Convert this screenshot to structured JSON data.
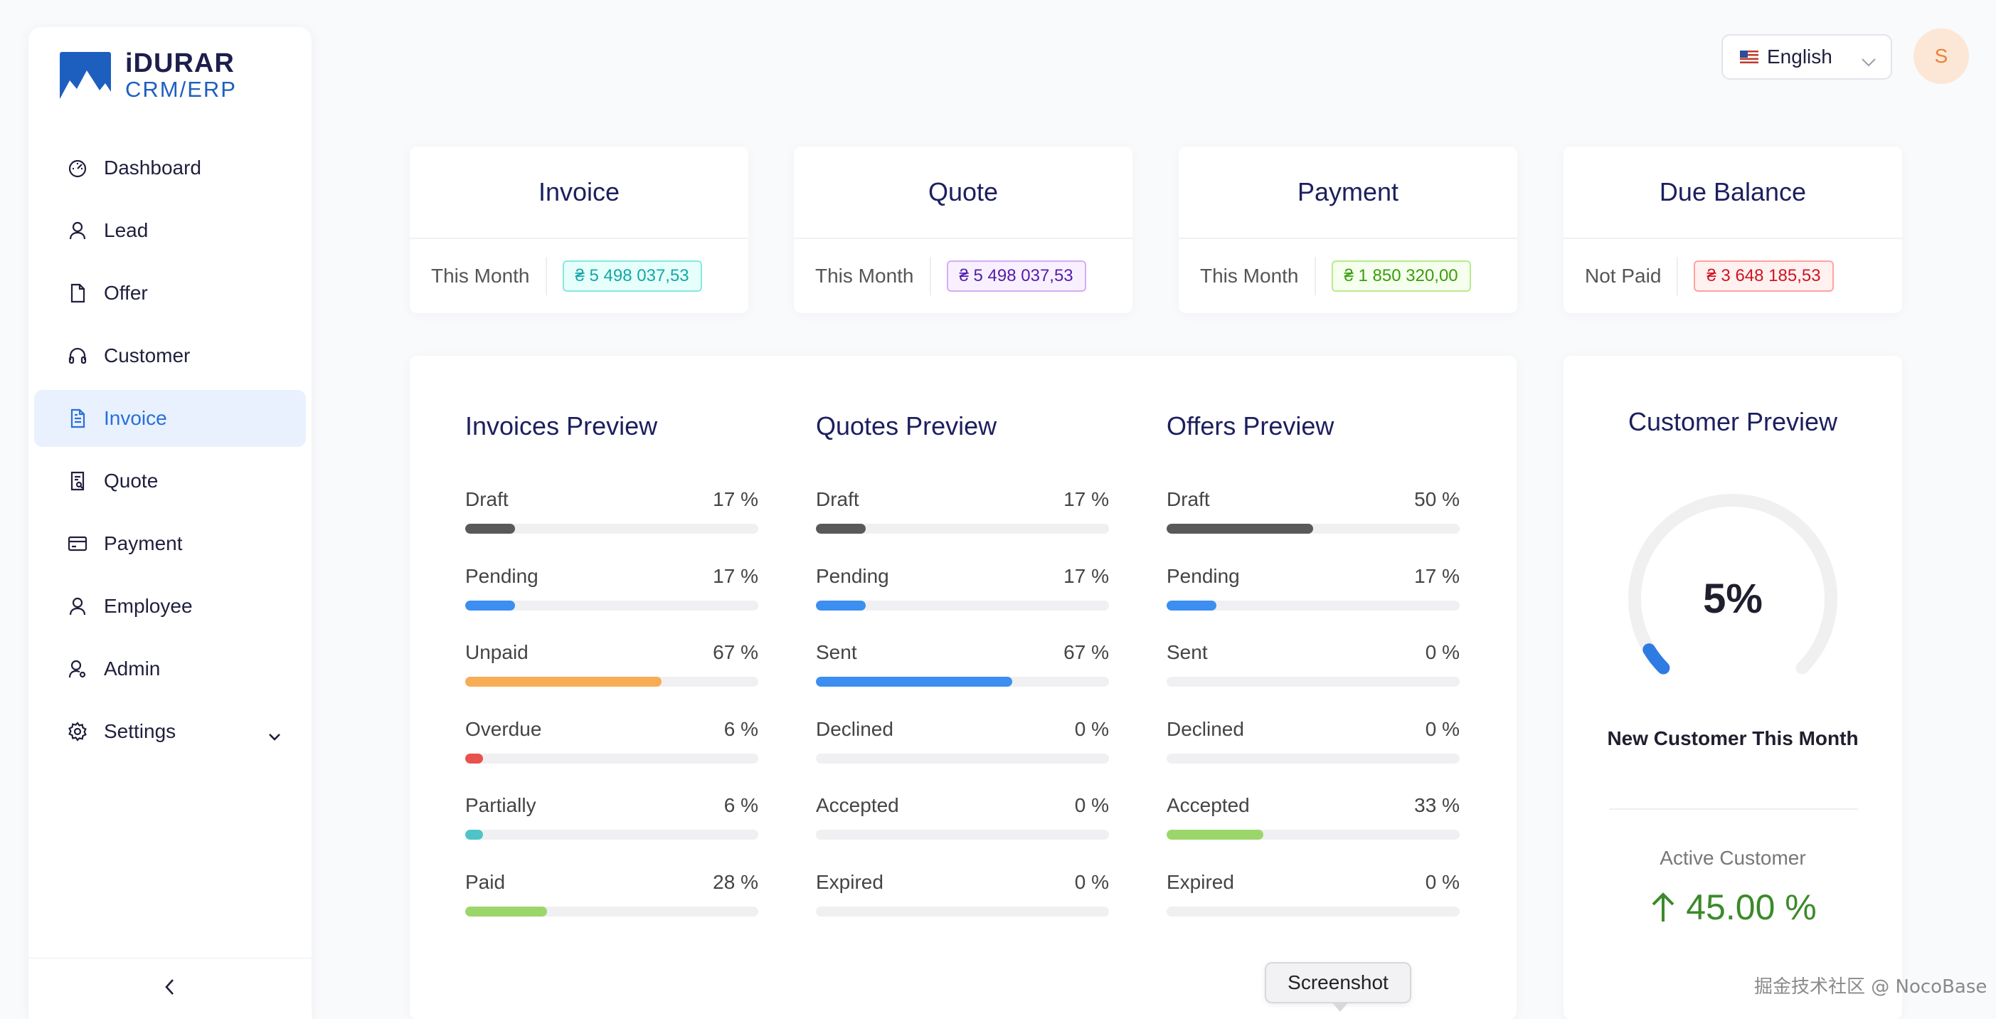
{
  "brand": {
    "top": "iDURAR",
    "bottom": "CRM/ERP"
  },
  "sidebar": {
    "items": [
      {
        "label": "Dashboard",
        "icon": "dashboard-icon"
      },
      {
        "label": "Lead",
        "icon": "user-icon"
      },
      {
        "label": "Offer",
        "icon": "file-icon"
      },
      {
        "label": "Customer",
        "icon": "headset-icon"
      },
      {
        "label": "Invoice",
        "icon": "file-text-icon",
        "active": true
      },
      {
        "label": "Quote",
        "icon": "file-search-icon"
      },
      {
        "label": "Payment",
        "icon": "credit-card-icon"
      },
      {
        "label": "Employee",
        "icon": "user-icon"
      },
      {
        "label": "Admin",
        "icon": "user-gear-icon"
      },
      {
        "label": "Settings",
        "icon": "gear-icon"
      }
    ]
  },
  "header": {
    "language": "English",
    "avatar_initial": "S"
  },
  "cards": [
    {
      "title": "Invoice",
      "period": "This Month",
      "amount": "₴ 5 498 037,53",
      "color": "#13a8a8"
    },
    {
      "title": "Quote",
      "period": "This Month",
      "amount": "₴ 5 498 037,53",
      "color": "#531dab"
    },
    {
      "title": "Payment",
      "period": "This Month",
      "amount": "₴ 1 850 320,00",
      "color": "#389e0d"
    },
    {
      "title": "Due Balance",
      "period": "Not Paid",
      "amount": "₴ 3 648 185,53",
      "color": "#cf1322"
    }
  ],
  "previews": [
    {
      "title": "Invoices Preview",
      "stats": [
        {
          "label": "Draft",
          "value": "17 %",
          "pct": 17,
          "color": "#595959"
        },
        {
          "label": "Pending",
          "value": "17 %",
          "pct": 17,
          "color": "#3c8ef0"
        },
        {
          "label": "Unpaid",
          "value": "67 %",
          "pct": 67,
          "color": "#f7ad55"
        },
        {
          "label": "Overdue",
          "value": "6 %",
          "pct": 6,
          "color": "#e8514c"
        },
        {
          "label": "Partially",
          "value": "6 %",
          "pct": 6,
          "color": "#4fc3c8"
        },
        {
          "label": "Paid",
          "value": "28 %",
          "pct": 28,
          "color": "#9bd66b"
        }
      ]
    },
    {
      "title": "Quotes Preview",
      "stats": [
        {
          "label": "Draft",
          "value": "17 %",
          "pct": 17,
          "color": "#595959"
        },
        {
          "label": "Pending",
          "value": "17 %",
          "pct": 17,
          "color": "#3c8ef0"
        },
        {
          "label": "Sent",
          "value": "67 %",
          "pct": 67,
          "color": "#3c8ef0"
        },
        {
          "label": "Declined",
          "value": "0 %",
          "pct": 0,
          "color": "#e8514c"
        },
        {
          "label": "Accepted",
          "value": "0 %",
          "pct": 0,
          "color": "#9bd66b"
        },
        {
          "label": "Expired",
          "value": "0 %",
          "pct": 0,
          "color": "#595959"
        }
      ]
    },
    {
      "title": "Offers Preview",
      "stats": [
        {
          "label": "Draft",
          "value": "50 %",
          "pct": 50,
          "color": "#595959"
        },
        {
          "label": "Pending",
          "value": "17 %",
          "pct": 17,
          "color": "#3c8ef0"
        },
        {
          "label": "Sent",
          "value": "0 %",
          "pct": 0,
          "color": "#3c8ef0"
        },
        {
          "label": "Declined",
          "value": "0 %",
          "pct": 0,
          "color": "#e8514c"
        },
        {
          "label": "Accepted",
          "value": "33 %",
          "pct": 33,
          "color": "#9bd66b"
        },
        {
          "label": "Expired",
          "value": "0 %",
          "pct": 0,
          "color": "#595959"
        }
      ]
    }
  ],
  "customer": {
    "title": "Customer Preview",
    "gauge_value": "5%",
    "gauge_pct": 5,
    "subtitle": "New Customer This Month",
    "active_label": "Active Customer",
    "active_value": "45.00 %"
  },
  "tooltip": "Screenshot",
  "watermark": "掘金技术社区 @ NocoBase"
}
